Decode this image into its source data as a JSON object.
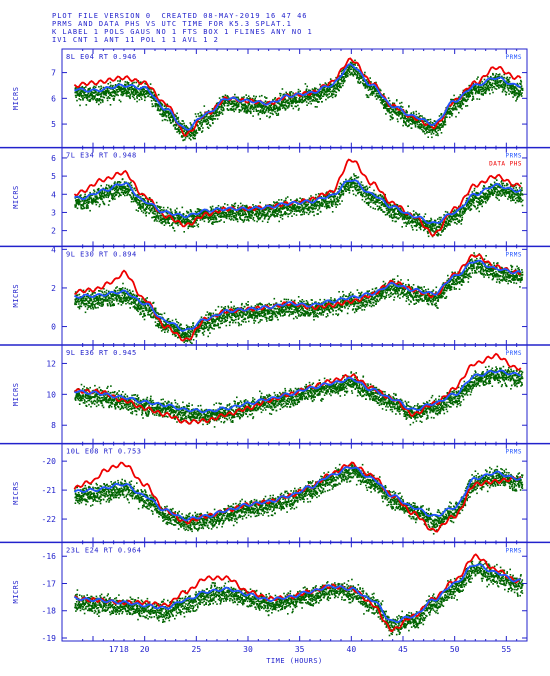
{
  "header": {
    "line1": "PLOT FILE VERSION 0  CREATED 08-MAY-2019 16 47 46",
    "line2": "PRMS AND DATA PHS VS UTC TIME FOR K5.3 SPLAT.1",
    "line3": "K LABEL 1 POLS GAUS NO 1 FTS BOX 1 FLINES ANY NO 1",
    "line4": "IV1 CNT 1 ANT 11 POL 1 1 AVL 1 2"
  },
  "chart_data": {
    "type": "scatter",
    "xlabel": "TIME (HOURS)",
    "xlim": [
      12,
      57
    ],
    "xticks": [
      "17",
      "18",
      "20",
      "25",
      "30",
      "35",
      "40",
      "45",
      "50",
      "55"
    ],
    "xtick_values": [
      17,
      18,
      20,
      25,
      30,
      35,
      40,
      45,
      50,
      55
    ],
    "legend_items": [
      {
        "label": "PRMS",
        "color": "#2255ff"
      },
      {
        "label": "DATA PHS",
        "color": "#ee0000"
      }
    ],
    "colors": {
      "data": "#ee0000",
      "model": "#2255ff",
      "points": "#006400",
      "axes": "#2222cc"
    },
    "panels": [
      {
        "label": "8L E04   RT 0.946",
        "ylabel": "MICRS",
        "ylim": [
          4.2,
          7.8
        ],
        "yticks": [
          5,
          6,
          7
        ],
        "knots": [
          [
            12,
            6.4
          ],
          [
            15,
            6.3
          ],
          [
            18,
            6.5
          ],
          [
            20,
            6.4
          ],
          [
            22,
            5.6
          ],
          [
            24,
            4.8
          ],
          [
            26,
            5.4
          ],
          [
            28,
            6.0
          ],
          [
            30,
            5.9
          ],
          [
            32,
            5.8
          ],
          [
            34,
            6.1
          ],
          [
            36,
            6.2
          ],
          [
            38,
            6.5
          ],
          [
            40,
            7.3
          ],
          [
            42,
            6.5
          ],
          [
            44,
            5.7
          ],
          [
            46,
            5.3
          ],
          [
            48,
            5.0
          ],
          [
            50,
            5.9
          ],
          [
            52,
            6.5
          ],
          [
            54,
            6.8
          ],
          [
            56,
            6.5
          ]
        ],
        "data_offsets": [
          [
            12,
            0.0
          ],
          [
            15,
            0.3
          ],
          [
            18,
            0.3
          ],
          [
            20,
            0.2
          ],
          [
            22,
            0.2
          ],
          [
            24,
            -0.2
          ],
          [
            26,
            0
          ],
          [
            30,
            0
          ],
          [
            36,
            0
          ],
          [
            40,
            0.2
          ],
          [
            44,
            0
          ],
          [
            48,
            -0.1
          ],
          [
            52,
            0.1
          ],
          [
            54,
            0.4
          ],
          [
            56,
            0.3
          ]
        ]
      },
      {
        "label": "7L E34   RT 0.948",
        "ylabel": "MICRS",
        "ylim": [
          1.3,
          6.4
        ],
        "yticks": [
          2,
          3,
          4,
          5,
          6
        ],
        "show_legend": true,
        "knots": [
          [
            12,
            3.8
          ],
          [
            14,
            3.8
          ],
          [
            16,
            4.2
          ],
          [
            18,
            4.6
          ],
          [
            20,
            3.6
          ],
          [
            22,
            3.0
          ],
          [
            24,
            2.8
          ],
          [
            26,
            3.1
          ],
          [
            28,
            3.2
          ],
          [
            30,
            3.2
          ],
          [
            32,
            3.3
          ],
          [
            34,
            3.5
          ],
          [
            36,
            3.6
          ],
          [
            38,
            3.9
          ],
          [
            40,
            4.8
          ],
          [
            42,
            4.0
          ],
          [
            44,
            3.3
          ],
          [
            46,
            2.8
          ],
          [
            48,
            2.4
          ],
          [
            50,
            3.0
          ],
          [
            52,
            4.0
          ],
          [
            54,
            4.5
          ],
          [
            56,
            4.2
          ]
        ],
        "data_offsets": [
          [
            12,
            0.1
          ],
          [
            16,
            0.6
          ],
          [
            18,
            0.6
          ],
          [
            20,
            0.3
          ],
          [
            22,
            -0.2
          ],
          [
            24,
            -0.5
          ],
          [
            26,
            -0.2
          ],
          [
            28,
            0
          ],
          [
            34,
            0
          ],
          [
            38,
            0.2
          ],
          [
            40,
            1.1
          ],
          [
            42,
            0.6
          ],
          [
            44,
            0.2
          ],
          [
            46,
            0
          ],
          [
            48,
            -0.6
          ],
          [
            50,
            0.2
          ],
          [
            52,
            0.5
          ],
          [
            54,
            0.5
          ],
          [
            56,
            0.3
          ]
        ]
      },
      {
        "label": "9L E30   RT 0.894",
        "ylabel": "MICRS",
        "ylim": [
          -0.8,
          4.0
        ],
        "yticks": [
          0,
          2,
          4
        ],
        "knots": [
          [
            12,
            1.5
          ],
          [
            15,
            1.6
          ],
          [
            18,
            1.8
          ],
          [
            20,
            1.2
          ],
          [
            22,
            0.3
          ],
          [
            24,
            -0.2
          ],
          [
            26,
            0.4
          ],
          [
            28,
            0.8
          ],
          [
            30,
            0.9
          ],
          [
            32,
            1.0
          ],
          [
            34,
            1.2
          ],
          [
            36,
            1.1
          ],
          [
            38,
            1.3
          ],
          [
            40,
            1.5
          ],
          [
            42,
            1.7
          ],
          [
            44,
            2.2
          ],
          [
            46,
            1.9
          ],
          [
            48,
            1.7
          ],
          [
            50,
            2.6
          ],
          [
            52,
            3.4
          ],
          [
            54,
            3.0
          ],
          [
            56,
            2.8
          ]
        ],
        "data_offsets": [
          [
            12,
            0.2
          ],
          [
            15,
            0.3
          ],
          [
            17,
            0.6
          ],
          [
            18,
            1.0
          ],
          [
            20,
            0.2
          ],
          [
            22,
            -0.3
          ],
          [
            24,
            -0.5
          ],
          [
            26,
            0
          ],
          [
            34,
            0
          ],
          [
            38,
            -0.2
          ],
          [
            40,
            -0.2
          ],
          [
            44,
            0.1
          ],
          [
            48,
            -0.1
          ],
          [
            52,
            0.3
          ],
          [
            54,
            0.1
          ],
          [
            56,
            0
          ]
        ]
      },
      {
        "label": "9L E36   RT 0.945",
        "ylabel": "MICRS",
        "ylim": [
          7.0,
          13.0
        ],
        "yticks": [
          8,
          10,
          12
        ],
        "knots": [
          [
            12,
            10.3
          ],
          [
            15,
            10.1
          ],
          [
            18,
            9.8
          ],
          [
            20,
            9.5
          ],
          [
            22,
            9.3
          ],
          [
            24,
            9.0
          ],
          [
            26,
            8.9
          ],
          [
            28,
            9.1
          ],
          [
            30,
            9.4
          ],
          [
            32,
            9.7
          ],
          [
            34,
            10.0
          ],
          [
            36,
            10.4
          ],
          [
            38,
            10.7
          ],
          [
            40,
            11.0
          ],
          [
            42,
            10.3
          ],
          [
            44,
            9.7
          ],
          [
            46,
            9.0
          ],
          [
            48,
            9.4
          ],
          [
            50,
            10.0
          ],
          [
            52,
            11.2
          ],
          [
            54,
            11.5
          ],
          [
            56,
            11.3
          ]
        ],
        "data_offsets": [
          [
            12,
            0
          ],
          [
            16,
            0.1
          ],
          [
            18,
            -0.2
          ],
          [
            20,
            -0.4
          ],
          [
            22,
            -0.6
          ],
          [
            24,
            -0.8
          ],
          [
            26,
            -0.6
          ],
          [
            28,
            -0.4
          ],
          [
            30,
            -0.3
          ],
          [
            32,
            -0.1
          ],
          [
            34,
            0
          ],
          [
            40,
            0.2
          ],
          [
            44,
            0
          ],
          [
            46,
            -0.3
          ],
          [
            48,
            0
          ],
          [
            52,
            0.8
          ],
          [
            54,
            1.0
          ],
          [
            56,
            0.4
          ]
        ]
      },
      {
        "label": "10L E08  RT 0.753",
        "ylabel": "MICRS",
        "ylim": [
          -22.7,
          -19.5
        ],
        "yticks": [
          -22,
          -21,
          -20
        ],
        "knots": [
          [
            12,
            -21.1
          ],
          [
            15,
            -21.0
          ],
          [
            18,
            -20.8
          ],
          [
            20,
            -21.2
          ],
          [
            22,
            -21.7
          ],
          [
            24,
            -22.0
          ],
          [
            26,
            -21.9
          ],
          [
            28,
            -21.7
          ],
          [
            30,
            -21.5
          ],
          [
            32,
            -21.4
          ],
          [
            34,
            -21.2
          ],
          [
            36,
            -20.9
          ],
          [
            38,
            -20.5
          ],
          [
            40,
            -20.2
          ],
          [
            42,
            -20.6
          ],
          [
            44,
            -21.2
          ],
          [
            46,
            -21.6
          ],
          [
            48,
            -21.9
          ],
          [
            50,
            -21.6
          ],
          [
            52,
            -20.6
          ],
          [
            54,
            -20.4
          ],
          [
            56,
            -20.6
          ]
        ],
        "data_offsets": [
          [
            12,
            0
          ],
          [
            15,
            0.3
          ],
          [
            16,
            0.6
          ],
          [
            18,
            0.7
          ],
          [
            20,
            0.4
          ],
          [
            22,
            0
          ],
          [
            24,
            -0.1
          ],
          [
            26,
            0
          ],
          [
            36,
            0
          ],
          [
            40,
            0.1
          ],
          [
            42,
            0.1
          ],
          [
            44,
            0
          ],
          [
            46,
            -0.2
          ],
          [
            48,
            -0.5
          ],
          [
            50,
            -0.3
          ],
          [
            52,
            -0.2
          ],
          [
            54,
            -0.3
          ],
          [
            56,
            0
          ]
        ]
      },
      {
        "label": "23L E24  RT 0.964",
        "ylabel": "MICRS",
        "ylim": [
          -19.0,
          -15.6
        ],
        "yticks": [
          -19,
          -18,
          -17,
          -16
        ],
        "knots": [
          [
            12,
            -17.5
          ],
          [
            15,
            -17.6
          ],
          [
            18,
            -17.7
          ],
          [
            20,
            -17.8
          ],
          [
            22,
            -17.9
          ],
          [
            24,
            -17.6
          ],
          [
            26,
            -17.3
          ],
          [
            28,
            -17.2
          ],
          [
            30,
            -17.4
          ],
          [
            32,
            -17.6
          ],
          [
            34,
            -17.5
          ],
          [
            36,
            -17.3
          ],
          [
            38,
            -17.1
          ],
          [
            40,
            -17.2
          ],
          [
            42,
            -17.6
          ],
          [
            44,
            -18.4
          ],
          [
            46,
            -18.2
          ],
          [
            48,
            -17.6
          ],
          [
            50,
            -17.0
          ],
          [
            52,
            -16.3
          ],
          [
            54,
            -16.6
          ],
          [
            56,
            -16.9
          ]
        ],
        "data_offsets": [
          [
            12,
            0
          ],
          [
            18,
            0
          ],
          [
            20,
            0.1
          ],
          [
            22,
            0.1
          ],
          [
            24,
            0.3
          ],
          [
            26,
            0.5
          ],
          [
            28,
            0.4
          ],
          [
            30,
            0.1
          ],
          [
            34,
            0
          ],
          [
            40,
            0
          ],
          [
            44,
            -0.3
          ],
          [
            46,
            0
          ],
          [
            50,
            0.1
          ],
          [
            52,
            0.3
          ],
          [
            54,
            0.1
          ],
          [
            56,
            0
          ]
        ]
      }
    ]
  }
}
